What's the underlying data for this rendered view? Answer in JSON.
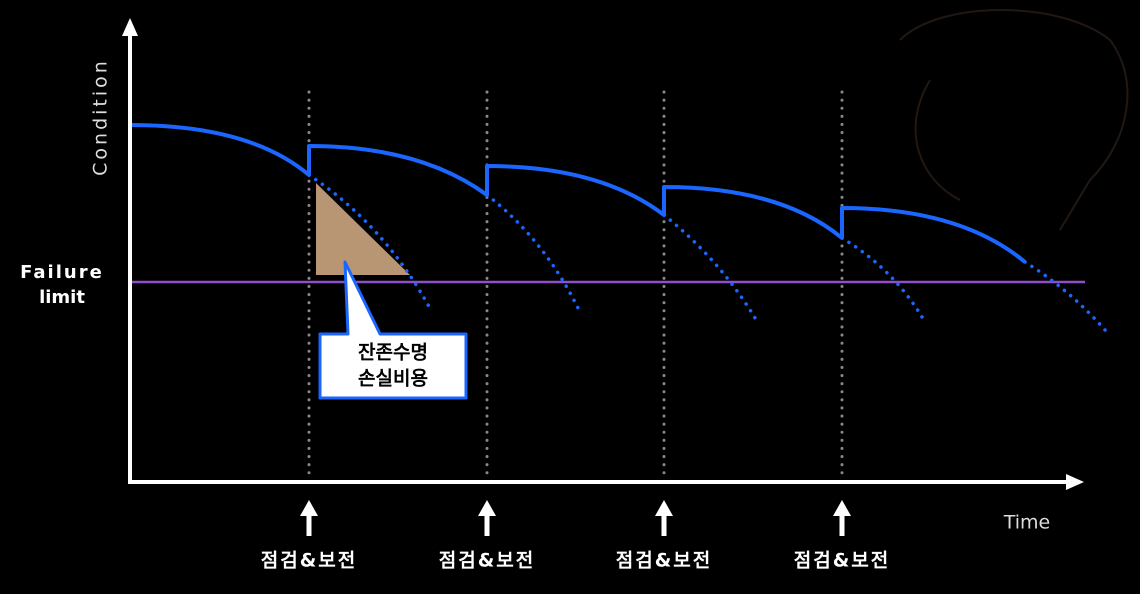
{
  "y_axis_label": "Condition",
  "x_axis_label": "Time",
  "failure_limit": [
    "Failure",
    "limit"
  ],
  "callout": [
    "잔존수명",
    "손실비용"
  ],
  "inspections": [
    "점검&보전",
    "점검&보전",
    "점검&보전",
    "점검&보전"
  ]
}
